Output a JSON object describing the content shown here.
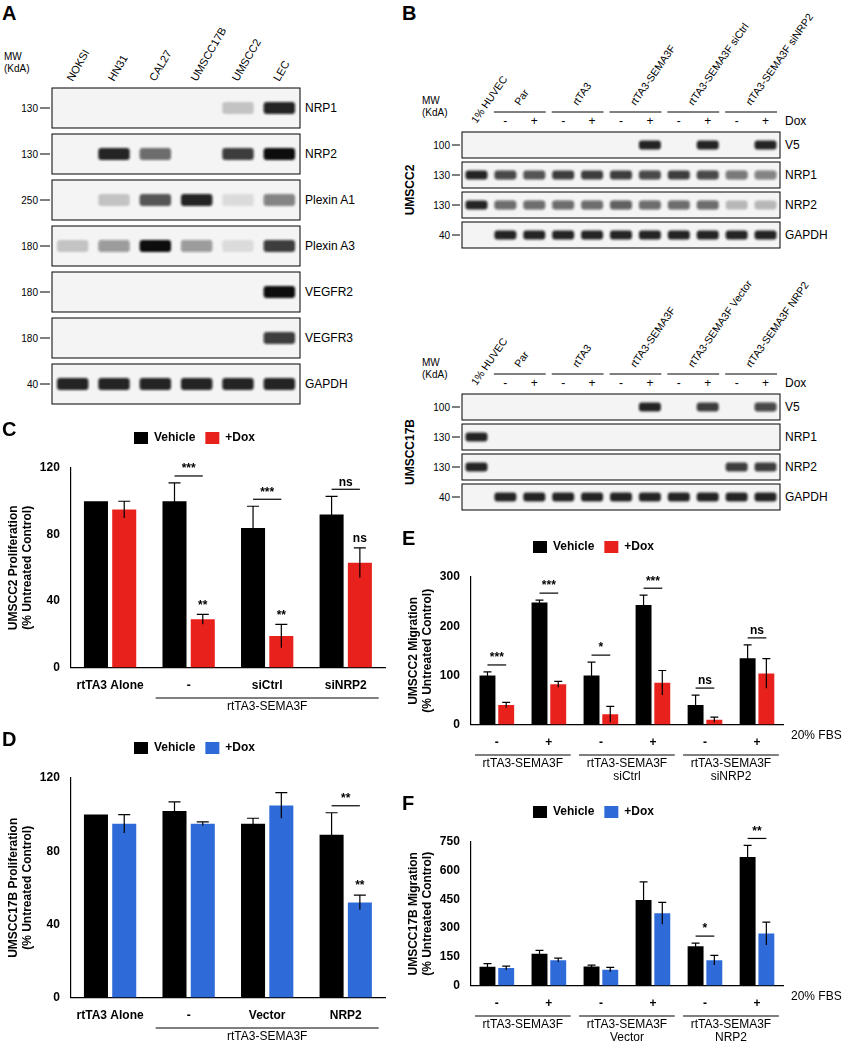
{
  "blots": [
    {
      "panel": "A",
      "mw_label": [
        "MW",
        "(KdA)"
      ],
      "lanes": [
        "NOKSI",
        "HN31",
        "CAL27",
        "UMSCC17B",
        "UMSCC2",
        "LEC"
      ],
      "rows": [
        {
          "label": "NRP1",
          "mw": 130,
          "bands": [
            0,
            0,
            0,
            0,
            0.2,
            0.9
          ]
        },
        {
          "label": "NRP2",
          "mw": 130,
          "bands": [
            0,
            0.9,
            0.6,
            0,
            0.8,
            1
          ]
        },
        {
          "label": "Plexin A1",
          "mw": 250,
          "bands": [
            0,
            0.2,
            0.7,
            0.9,
            0.1,
            0.5
          ]
        },
        {
          "label": "Plexin A3",
          "mw": 180,
          "bands": [
            0.2,
            0.4,
            1,
            0.4,
            0.1,
            0.8
          ]
        },
        {
          "label": "VEGFR2",
          "mw": 180,
          "bands": [
            0,
            0,
            0,
            0,
            0,
            1
          ]
        },
        {
          "label": "VEGFR3",
          "mw": 180,
          "bands": [
            0,
            0,
            0,
            0,
            0,
            0.8
          ]
        },
        {
          "label": "GAPDH",
          "mw": 40,
          "bands": [
            0.9,
            0.9,
            0.9,
            0.9,
            0.9,
            0.9
          ]
        }
      ]
    },
    {
      "panel": "B",
      "mw_label": [
        "MW",
        "(KdA)"
      ],
      "treatment_label": "Dox",
      "sections": [
        {
          "cell_line": "UMSCC2",
          "lanes": [
            "1% HUVEC"
          ],
          "groups": [
            {
              "label": "Par",
              "signs": [
                "-",
                "+"
              ]
            },
            {
              "label": "rtTA3",
              "signs": [
                "-",
                "+"
              ]
            },
            {
              "label": "rtTA3-SEMA3F",
              "signs": [
                "-",
                "+"
              ]
            },
            {
              "label": "rtTA3-SEMA3F siCtrl",
              "signs": [
                "-",
                "+"
              ]
            },
            {
              "label": "rtTA3-SEMA3F siNRP2",
              "signs": [
                "-",
                "+"
              ]
            }
          ],
          "rows": [
            {
              "label": "V5",
              "mw": 100,
              "bands": [
                0,
                0,
                0,
                0,
                0,
                0,
                0.9,
                0,
                0.9,
                0,
                0.9
              ]
            },
            {
              "label": "NRP1",
              "mw": 130,
              "bands": [
                0.9,
                0.75,
                0.7,
                0.8,
                0.8,
                0.8,
                0.75,
                0.8,
                0.75,
                0.55,
                0.5
              ]
            },
            {
              "label": "NRP2",
              "mw": 130,
              "bands": [
                0.9,
                0.6,
                0.6,
                0.6,
                0.6,
                0.65,
                0.6,
                0.6,
                0.6,
                0.25,
                0.25
              ]
            },
            {
              "label": "GAPDH",
              "mw": 40,
              "bands": [
                0,
                0.9,
                0.9,
                0.9,
                0.9,
                0.9,
                0.9,
                0.9,
                0.9,
                0.9,
                0.9
              ]
            }
          ]
        },
        {
          "cell_line": "UMSCC17B",
          "lanes": [
            "1% HUVEC"
          ],
          "groups": [
            {
              "label": "Par",
              "signs": [
                "-",
                "+"
              ]
            },
            {
              "label": "rtTA3",
              "signs": [
                "-",
                "+"
              ]
            },
            {
              "label": "rtTA3-SEMA3F",
              "signs": [
                "-",
                "+"
              ]
            },
            {
              "label": "rtTA3-SEMA3F Vector",
              "signs": [
                "-",
                "+"
              ]
            },
            {
              "label": "rtTA3-SEMA3F NRP2",
              "signs": [
                "-",
                "+"
              ]
            }
          ],
          "rows": [
            {
              "label": "V5",
              "mw": 100,
              "bands": [
                0,
                0,
                0,
                0,
                0,
                0,
                0.9,
                0,
                0.8,
                0,
                0.75
              ]
            },
            {
              "label": "NRP1",
              "mw": 130,
              "bands": [
                0.9,
                0,
                0,
                0,
                0,
                0,
                0,
                0,
                0,
                0,
                0
              ]
            },
            {
              "label": "NRP2",
              "mw": 130,
              "bands": [
                0.9,
                0,
                0,
                0,
                0,
                0,
                0,
                0,
                0,
                0.8,
                0.8
              ]
            },
            {
              "label": "GAPDH",
              "mw": 40,
              "bands": [
                0,
                0.9,
                0.9,
                0.9,
                0.9,
                0.9,
                0.9,
                0.9,
                0.9,
                0.9,
                0.9
              ]
            }
          ]
        }
      ]
    }
  ],
  "chart_data": [
    {
      "panel": "C",
      "type": "bar",
      "legend": "top",
      "grid": false,
      "y_label": [
        "UMSCC2 Proliferation",
        "(% Untreated Control)"
      ],
      "categories": [
        "rtTA3 Alone",
        "-",
        "siCtrl",
        "siNRP2"
      ],
      "groups": [
        {
          "label": [
            "rtTA3-SEMA3F"
          ],
          "from": 1,
          "to": 3
        }
      ],
      "series": [
        {
          "name": "Vehicle",
          "color": "#000000",
          "values": [
            100,
            100,
            84,
            92
          ],
          "errors": [
            0,
            11,
            13,
            11
          ]
        },
        {
          "name": "+Dox",
          "color": "#e8211c",
          "values": [
            95,
            29,
            19,
            63
          ],
          "errors": [
            5,
            3,
            7,
            9
          ]
        }
      ],
      "ylim": [
        0,
        120
      ],
      "yticks": [
        0,
        40,
        80,
        120
      ],
      "significance": [
        {
          "index": 1,
          "text": "***"
        },
        {
          "index": 2,
          "text": "***"
        },
        {
          "index": 3,
          "text": "ns"
        },
        {
          "index": 1,
          "text": "**",
          "series": "+Dox"
        },
        {
          "index": 2,
          "text": "**",
          "series": "+Dox"
        },
        {
          "index": 3,
          "text": "ns",
          "series": "+Dox"
        }
      ]
    },
    {
      "panel": "D",
      "type": "bar",
      "legend": "top",
      "grid": false,
      "y_label": [
        "UMSCC17B Proliferation",
        "(% Untreated Control)"
      ],
      "categories": [
        "rtTA3 Alone",
        "-",
        "Vector",
        "NRP2"
      ],
      "groups": [
        {
          "label": [
            "rtTA3-SEMA3F"
          ],
          "from": 1,
          "to": 3
        }
      ],
      "series": [
        {
          "name": "Vehicle",
          "color": "#000000",
          "values": [
            100,
            102,
            95,
            89
          ],
          "errors": [
            0,
            5,
            3,
            12
          ]
        },
        {
          "name": "+Dox",
          "color": "#2f6bd8",
          "values": [
            95,
            95,
            105,
            52
          ],
          "errors": [
            5,
            1,
            7,
            4
          ]
        }
      ],
      "ylim": [
        0,
        120
      ],
      "yticks": [
        0,
        40,
        80,
        120
      ],
      "significance": [
        {
          "index": 3,
          "text": "**"
        },
        {
          "index": 3,
          "text": "**",
          "series": "+Dox"
        }
      ]
    },
    {
      "panel": "E",
      "type": "bar",
      "legend": "top",
      "grid": false,
      "y_label": [
        "UMSCC2 Migration",
        "(% Untreated Control)"
      ],
      "categories": [
        "-",
        "+",
        "-",
        "+",
        "-",
        "+"
      ],
      "annotations": [
        {
          "text": "20% FBS"
        }
      ],
      "groups": [
        {
          "label": [
            "rtTA3-SEMA3F"
          ],
          "from": 0,
          "to": 1
        },
        {
          "label": [
            "rtTA3-SEMA3F",
            "siCtrl"
          ],
          "from": 2,
          "to": 3
        },
        {
          "label": [
            "rtTA3-SEMA3F",
            "siNRP2"
          ],
          "from": 4,
          "to": 5
        }
      ],
      "series": [
        {
          "name": "Vehicle",
          "color": "#000000",
          "values": [
            100,
            248,
            100,
            243,
            40,
            135
          ],
          "errors": [
            7,
            5,
            27,
            20,
            20,
            27
          ]
        },
        {
          "name": "+Dox",
          "color": "#e8211c",
          "values": [
            40,
            82,
            21,
            85,
            10,
            104
          ],
          "errors": [
            5,
            6,
            16,
            25,
            5,
            30
          ]
        }
      ],
      "ylim": [
        0,
        300
      ],
      "yticks": [
        0,
        100,
        200,
        300
      ],
      "significance": [
        {
          "index": 0,
          "text": "***"
        },
        {
          "index": 1,
          "text": "***"
        },
        {
          "index": 2,
          "text": "*"
        },
        {
          "index": 3,
          "text": "***"
        },
        {
          "index": 4,
          "text": "ns"
        },
        {
          "index": 5,
          "text": "ns"
        }
      ]
    },
    {
      "panel": "F",
      "type": "bar",
      "legend": "top",
      "grid": false,
      "y_label": [
        "UMSCC17B Migration",
        "(% Untreated Control)"
      ],
      "categories": [
        "-",
        "+",
        "-",
        "+",
        "-",
        "+"
      ],
      "annotations": [
        {
          "text": "20% FBS"
        }
      ],
      "groups": [
        {
          "label": [
            "rtTA3-SEMA3F"
          ],
          "from": 0,
          "to": 1
        },
        {
          "label": [
            "rtTA3-SEMA3F",
            "Vector"
          ],
          "from": 2,
          "to": 3
        },
        {
          "label": [
            "rtTA3-SEMA3F",
            "NRP2"
          ],
          "from": 4,
          "to": 5
        }
      ],
      "series": [
        {
          "name": "Vehicle",
          "color": "#000000",
          "values": [
            98,
            167,
            100,
            447,
            205,
            672
          ],
          "errors": [
            17,
            17,
            7,
            95,
            17,
            60
          ]
        },
        {
          "name": "+Dox",
          "color": "#2f6bd8",
          "values": [
            92,
            133,
            83,
            378,
            133,
            272
          ],
          "errors": [
            10,
            10,
            12,
            57,
            25,
            60
          ]
        }
      ],
      "ylim": [
        0,
        750
      ],
      "yticks": [
        0,
        150,
        300,
        450,
        600,
        750
      ],
      "significance": [
        {
          "index": 4,
          "text": "*"
        },
        {
          "index": 5,
          "text": "**"
        }
      ]
    }
  ]
}
